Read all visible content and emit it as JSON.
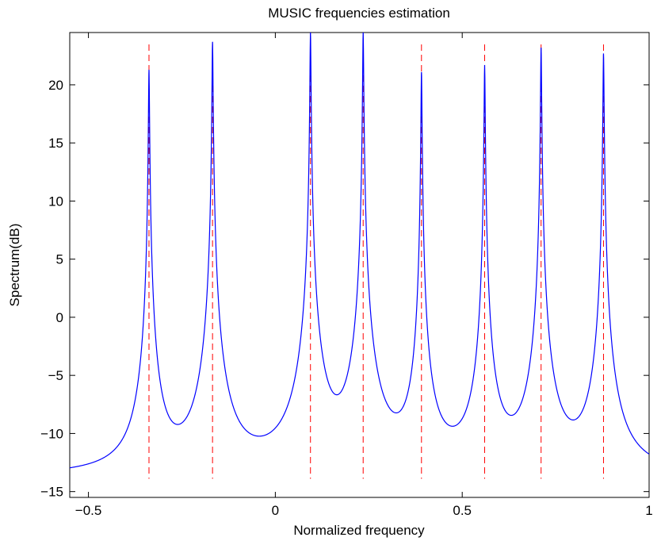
{
  "chart_data": {
    "type": "line",
    "title": "MUSIC frequencies estimation",
    "xlabel": "Normalized frequency",
    "ylabel": "Spectrum(dB)",
    "xlim": [
      -0.55,
      1.0
    ],
    "ylim": [
      -15.5,
      24.5
    ],
    "x_ticks": [
      -0.5,
      0,
      0.5,
      1
    ],
    "x_tick_labels": [
      "−0.5",
      "0",
      "0.5",
      "1"
    ],
    "y_ticks": [
      -15,
      -10,
      -5,
      0,
      5,
      10,
      15,
      20
    ],
    "y_tick_labels": [
      "−15",
      "−10",
      "−5",
      "0",
      "5",
      "10",
      "15",
      "20"
    ],
    "grid": false,
    "series": [
      {
        "color": "#0000ff",
        "style": "solid",
        "peaks": [
          {
            "x": -0.338,
            "y": 21.3
          },
          {
            "x": -0.168,
            "y": 23.7
          },
          {
            "x": 0.094,
            "y": 24.5
          },
          {
            "x": 0.235,
            "y": 24.5
          },
          {
            "x": 0.391,
            "y": 21.1
          },
          {
            "x": 0.56,
            "y": 21.7
          },
          {
            "x": 0.711,
            "y": 23.2
          },
          {
            "x": 0.878,
            "y": 22.7
          }
        ],
        "floor": -13.8
      },
      {
        "color": "#ff0000",
        "style": "dashed",
        "x_positions": [
          -0.338,
          -0.168,
          0.094,
          0.235,
          0.391,
          0.56,
          0.711,
          0.878
        ]
      }
    ]
  }
}
